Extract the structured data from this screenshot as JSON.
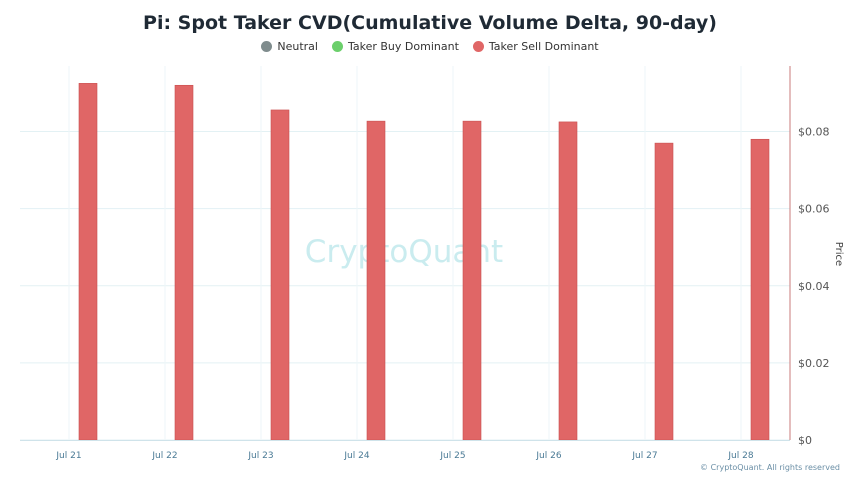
{
  "chart_data": {
    "type": "bar",
    "title": "Pi: Spot Taker CVD(Cumulative Volume Delta, 90-day)",
    "categories": [
      "Jul 21",
      "Jul 22",
      "Jul 23",
      "Jul 24",
      "Jul 25",
      "Jul 26",
      "Jul 27",
      "Jul 28"
    ],
    "series": [
      {
        "name": "Taker Sell Dominant",
        "color": "#e06666",
        "values": [
          0.0925,
          0.092,
          0.0856,
          0.0827,
          0.0827,
          0.0825,
          0.077,
          0.078
        ]
      }
    ],
    "legend": [
      {
        "name": "Neutral",
        "color": "#7f8c8d"
      },
      {
        "name": "Taker Buy Dominant",
        "color": "#6bcf6b"
      },
      {
        "name": "Taker Sell Dominant",
        "color": "#e06666"
      }
    ],
    "ylabel": "Price",
    "ylim": [
      0,
      0.097
    ],
    "yticks": [
      {
        "value": 0,
        "label": "$0"
      },
      {
        "value": 0.02,
        "label": "$0.02"
      },
      {
        "value": 0.04,
        "label": "$0.04"
      },
      {
        "value": 0.06,
        "label": "$0.06"
      },
      {
        "value": 0.08,
        "label": "$0.08"
      }
    ],
    "grid": true,
    "legend_position": "top-center"
  },
  "watermark": "CryptoQuant",
  "footer": "© CryptoQuant. All rights reserved"
}
